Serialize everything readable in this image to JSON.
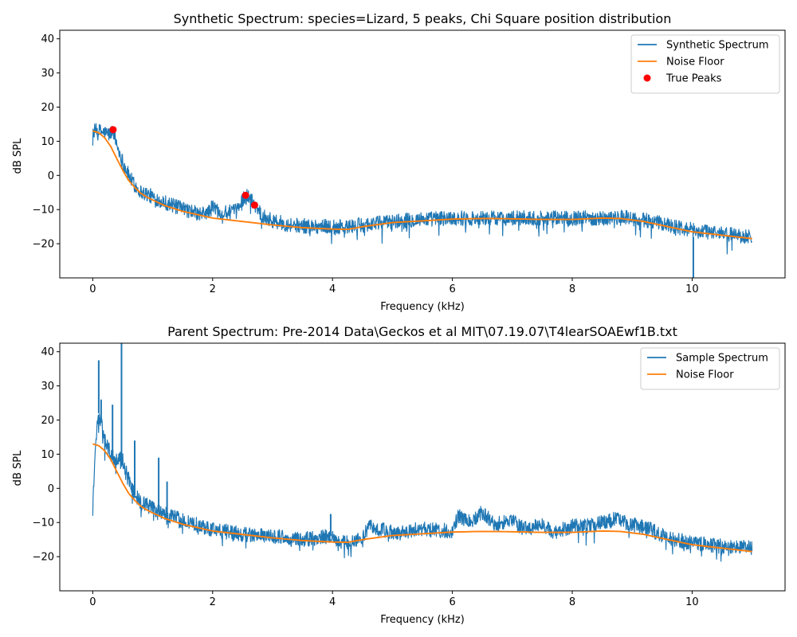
{
  "colors": {
    "spectrum": "#1f77b4",
    "noise": "#ff7f0e",
    "peaks": "#ff0000"
  },
  "chart_data": [
    {
      "type": "line",
      "title": "Synthetic Spectrum: species=Lizard, 5 peaks, Chi Square position distribution",
      "xlabel": "Frequency (kHz)",
      "ylabel": "dB SPL",
      "xlim": [
        -0.55,
        11.55
      ],
      "ylim": [
        -30,
        42.5
      ],
      "xticks": [
        0,
        2,
        4,
        6,
        8,
        10
      ],
      "yticks": [
        -20,
        -10,
        0,
        10,
        20,
        30,
        40
      ],
      "grid": false,
      "legend_position": "top-right",
      "series": [
        {
          "name": "Synthetic Spectrum",
          "kind": "line",
          "color_key": "spectrum",
          "noise_amplitude": 2.2,
          "x": [
            0,
            0.1,
            0.2,
            0.28,
            0.34,
            0.4,
            0.5,
            0.6,
            0.7,
            0.8,
            0.9,
            1.0,
            1.2,
            1.4,
            1.6,
            1.8,
            1.95,
            2.0,
            2.1,
            2.2,
            2.4,
            2.5,
            2.55,
            2.6,
            2.7,
            2.8,
            2.9,
            3.0,
            3.2,
            3.5,
            4.0,
            4.2,
            4.5,
            5.0,
            5.5,
            6.0,
            6.5,
            7.0,
            7.5,
            8.0,
            8.5,
            9.0,
            9.3,
            9.6,
            10.0,
            10.5,
            11.0
          ],
          "y": [
            13,
            13,
            12.5,
            12,
            13.4,
            9,
            4,
            0,
            -3,
            -4.8,
            -5.5,
            -6.3,
            -7.8,
            -9.3,
            -10.3,
            -11.5,
            -10.5,
            -9,
            -10.5,
            -11,
            -10.5,
            -7,
            -5.8,
            -6.5,
            -8.3,
            -11,
            -12.5,
            -13.2,
            -14.2,
            -14.8,
            -15,
            -15.2,
            -14.5,
            -13.5,
            -12.8,
            -12.5,
            -12.5,
            -12.5,
            -12.5,
            -12.5,
            -12.5,
            -12.3,
            -13.5,
            -14.5,
            -16,
            -17,
            -18
          ]
        },
        {
          "name": "Noise Floor",
          "kind": "line",
          "color_key": "noise",
          "x": [
            0,
            0.1,
            0.2,
            0.3,
            0.4,
            0.5,
            0.6,
            0.7,
            0.8,
            0.9,
            1.0,
            1.2,
            1.5,
            2.0,
            2.5,
            3.0,
            3.5,
            4.0,
            4.25,
            4.5,
            5.0,
            5.5,
            6.0,
            6.5,
            7.0,
            7.5,
            8.0,
            8.5,
            8.8,
            9.2,
            9.6,
            10.0,
            10.5,
            11.0
          ],
          "y": [
            13,
            12.5,
            11,
            8.5,
            5,
            1.5,
            -1.5,
            -3.5,
            -5.2,
            -6.3,
            -7.2,
            -8.8,
            -10.5,
            -12.5,
            -13.5,
            -14.5,
            -15.3,
            -15.7,
            -15.8,
            -15,
            -13.8,
            -13.3,
            -12.8,
            -12.6,
            -12.7,
            -12.9,
            -12.9,
            -12.5,
            -12.6,
            -13.5,
            -15,
            -16.5,
            -17.5,
            -18.5
          ]
        },
        {
          "name": "True Peaks",
          "kind": "scatter",
          "color_key": "peaks",
          "x": [
            0.34,
            2.55,
            2.7
          ],
          "y": [
            13.4,
            -5.8,
            -8.7
          ]
        }
      ]
    },
    {
      "type": "line",
      "title": "Parent Spectrum: Pre-2014 Data\\Geckos et al MIT\\07.19.07\\T4learSOAEwf1B.txt",
      "xlabel": "Frequency (kHz)",
      "ylabel": "dB SPL",
      "xlim": [
        -0.55,
        11.55
      ],
      "ylim": [
        -30,
        42.5
      ],
      "xticks": [
        0,
        2,
        4,
        6,
        8,
        10
      ],
      "yticks": [
        -20,
        -10,
        0,
        10,
        20,
        30,
        40
      ],
      "grid": false,
      "legend_position": "top-right",
      "series": [
        {
          "name": "Sample Spectrum",
          "kind": "line",
          "color_key": "spectrum",
          "noise_amplitude": 2.2,
          "x": [
            0,
            0.05,
            0.1,
            0.13,
            0.2,
            0.3,
            0.4,
            0.45,
            0.5,
            0.6,
            0.7,
            0.8,
            1.0,
            1.2,
            1.5,
            2.0,
            2.5,
            3.0,
            3.5,
            3.97,
            4.2,
            4.5,
            4.6,
            4.8,
            5.0,
            5.5,
            6.0,
            6.1,
            6.3,
            6.5,
            6.7,
            7.0,
            7.2,
            7.5,
            7.7,
            8.0,
            8.3,
            8.7,
            9.0,
            9.3,
            9.6,
            10.0,
            10.5,
            11.0
          ],
          "y": [
            -5,
            15,
            22,
            20,
            14,
            10,
            8,
            9,
            8,
            3,
            -2,
            -4,
            -6,
            -7.5,
            -9.5,
            -12,
            -13.5,
            -14,
            -15,
            -14,
            -16,
            -15,
            -11,
            -12,
            -13,
            -12,
            -12.5,
            -8,
            -10,
            -7,
            -10.5,
            -9.5,
            -12,
            -10.5,
            -13,
            -11,
            -11,
            -9,
            -10.5,
            -12,
            -14.5,
            -16,
            -17,
            -17.5
          ]
        },
        {
          "name": "Noise Floor",
          "kind": "line",
          "color_key": "noise",
          "x": [
            0,
            0.1,
            0.2,
            0.3,
            0.4,
            0.5,
            0.6,
            0.7,
            0.8,
            0.9,
            1.0,
            1.2,
            1.5,
            2.0,
            2.5,
            3.0,
            3.5,
            4.0,
            4.25,
            4.5,
            5.0,
            5.5,
            6.0,
            6.5,
            7.0,
            7.5,
            8.0,
            8.5,
            8.8,
            9.2,
            9.6,
            10.0,
            10.5,
            11.0
          ],
          "y": [
            13,
            12.5,
            11,
            8.5,
            5,
            1.5,
            -1.5,
            -3.5,
            -5.2,
            -6.3,
            -7.2,
            -8.8,
            -10.5,
            -12.5,
            -13.5,
            -14.5,
            -15.3,
            -15.7,
            -15.8,
            -15,
            -13.8,
            -13.3,
            -12.8,
            -12.6,
            -12.7,
            -12.9,
            -12.9,
            -12.5,
            -12.6,
            -13.5,
            -15,
            -16.5,
            -17.5,
            -18.5
          ]
        }
      ],
      "spikes": [
        {
          "x": 0.1,
          "y": 37.5
        },
        {
          "x": 0.14,
          "y": 26
        },
        {
          "x": 0.33,
          "y": 24.5
        },
        {
          "x": 0.48,
          "y": 42.5
        },
        {
          "x": 0.7,
          "y": 14
        },
        {
          "x": 1.1,
          "y": 9
        },
        {
          "x": 1.24,
          "y": 2
        },
        {
          "x": 3.97,
          "y": -7.5
        }
      ]
    }
  ]
}
